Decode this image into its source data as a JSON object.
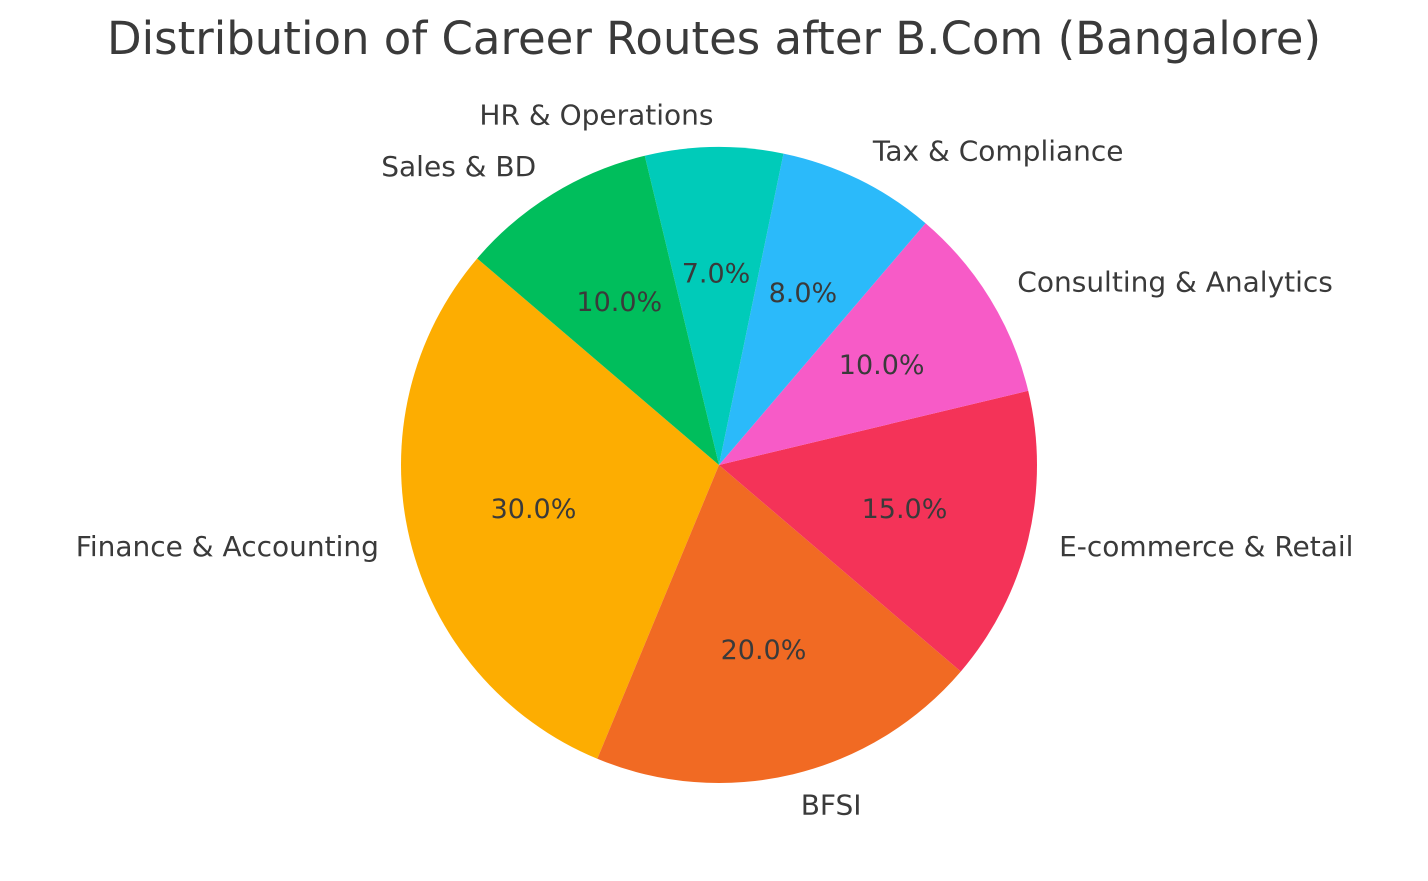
{
  "title": "Distribution of Career Routes after B.Com (Bangalore)",
  "chart_data": {
    "type": "pie",
    "title": "Distribution of Career Routes after B.Com (Bangalore)",
    "labels": [
      "Finance & Accounting",
      "BFSI",
      "E-commerce & Retail",
      "Consulting & Analytics",
      "Tax & Compliance",
      "HR & Operations",
      "Sales & BD"
    ],
    "values": [
      30.0,
      20.0,
      15.0,
      10.0,
      8.0,
      7.0,
      10.0
    ],
    "percent_labels": [
      "30.0%",
      "20.0%",
      "15.0%",
      "10.0%",
      "8.0%",
      "7.0%",
      "10.0%"
    ],
    "colors": [
      "#FDAD01",
      "#F16A23",
      "#F43358",
      "#F75BC7",
      "#2BBAFA",
      "#00CBB9",
      "#00BE5C"
    ],
    "start_angle_deg": 139.5,
    "direction": "counterclockwise",
    "label_distance": 1.1,
    "pct_distance": 0.6,
    "legend": "none",
    "background_color": "#FFFFFF",
    "text_color": "#3A3A3A"
  }
}
